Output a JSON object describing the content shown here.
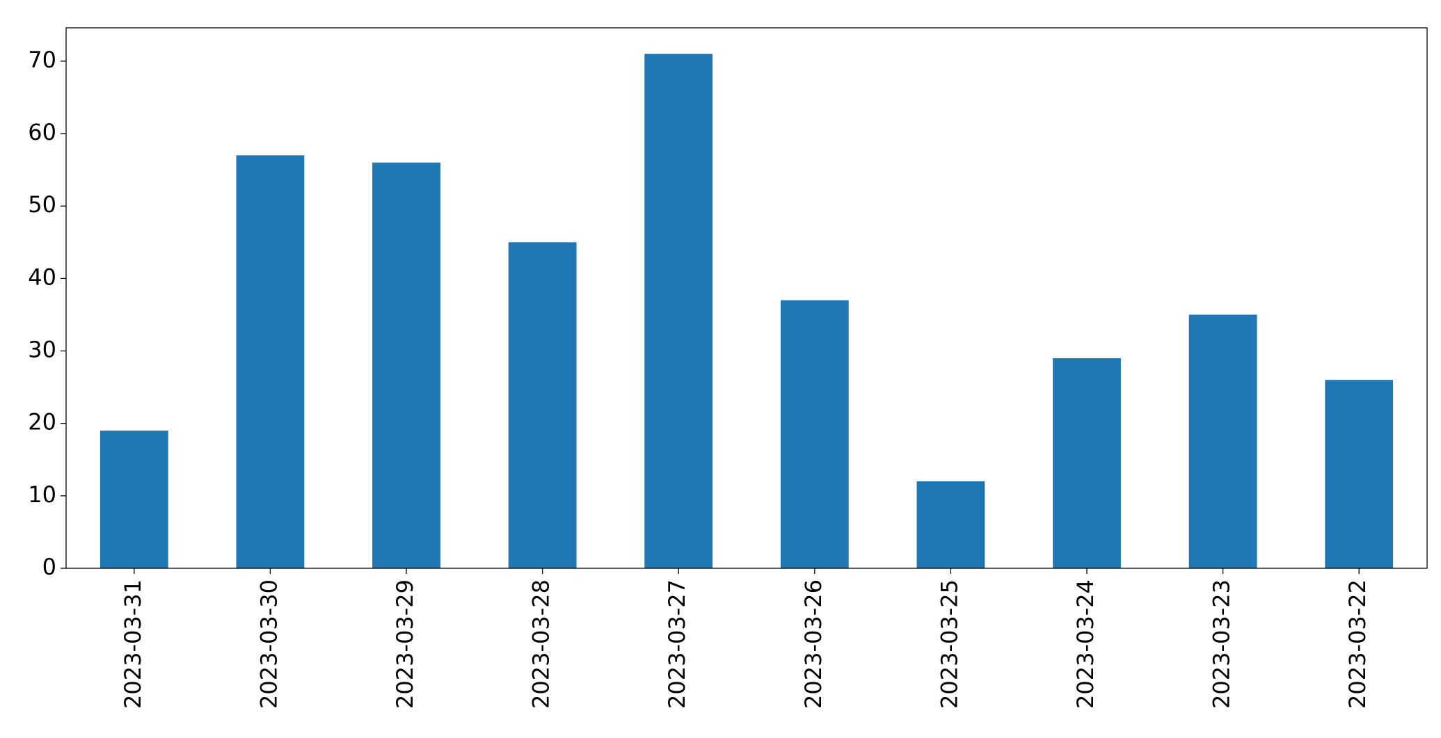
{
  "chart_data": {
    "type": "bar",
    "categories": [
      "2023-03-31",
      "2023-03-30",
      "2023-03-29",
      "2023-03-28",
      "2023-03-27",
      "2023-03-26",
      "2023-03-25",
      "2023-03-24",
      "2023-03-23",
      "2023-03-22"
    ],
    "values": [
      19,
      57,
      56,
      45,
      71,
      37,
      12,
      29,
      35,
      26
    ],
    "color": "#1f77b4",
    "ylim": [
      0,
      74.6
    ],
    "yticks": [
      0,
      10,
      20,
      30,
      40,
      50,
      60,
      70
    ]
  }
}
